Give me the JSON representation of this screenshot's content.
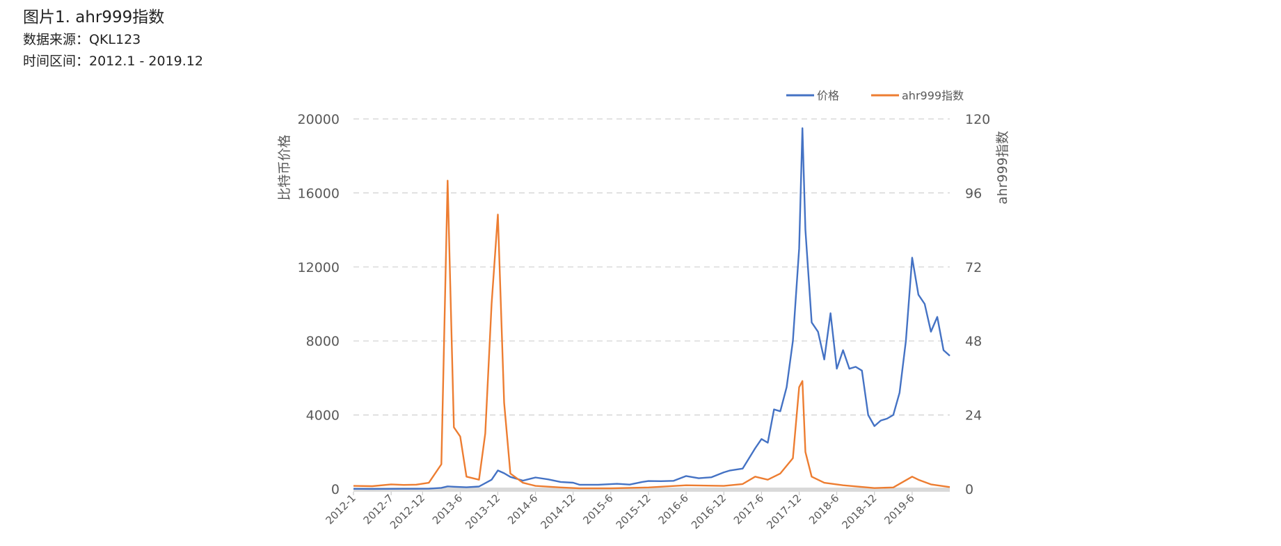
{
  "header": {
    "title": "图片1. ahr999指数",
    "source": "数据来源：QKL123",
    "range": "时间区间：2012.1 - 2019.12"
  },
  "chart_data": {
    "type": "line",
    "x_start": "2012-1",
    "x_end": "2019-12",
    "x_tick_labels": [
      "2012-1",
      "2012-7",
      "2012-12",
      "2013-6",
      "2013-12",
      "2014-6",
      "2014-12",
      "2015-6",
      "2015-12",
      "2016-6",
      "2016-12",
      "2017-6",
      "2017-12",
      "2018-6",
      "2018-12",
      "2019-6"
    ],
    "y_left": {
      "label": "比特币价格",
      "min": 0,
      "max": 20000,
      "ticks": [
        "0",
        "4000",
        "8000",
        "12000",
        "16000",
        "20000"
      ]
    },
    "y_right": {
      "label": "ahr999指数",
      "min": 0,
      "max": 120,
      "ticks": [
        "0",
        "24",
        "48",
        "72",
        "96",
        "120"
      ]
    },
    "grid": true,
    "legend_position": "top-right",
    "series": [
      {
        "name": "价格",
        "axis": "left",
        "color": "#4472C4",
        "points": [
          [
            "2012-01",
            6
          ],
          [
            "2012-04",
            5
          ],
          [
            "2012-07",
            8
          ],
          [
            "2012-09",
            11
          ],
          [
            "2012-11",
            12
          ],
          [
            "2013-01",
            14
          ],
          [
            "2013-03",
            60
          ],
          [
            "2013-04",
            140
          ],
          [
            "2013-05",
            120
          ],
          [
            "2013-07",
            90
          ],
          [
            "2013-09",
            130
          ],
          [
            "2013-11",
            500
          ],
          [
            "2013-12",
            1000
          ],
          [
            "2014-01",
            850
          ],
          [
            "2014-02",
            650
          ],
          [
            "2014-04",
            450
          ],
          [
            "2014-06",
            620
          ],
          [
            "2014-08",
            520
          ],
          [
            "2014-10",
            380
          ],
          [
            "2014-12",
            340
          ],
          [
            "2015-01",
            230
          ],
          [
            "2015-04",
            230
          ],
          [
            "2015-07",
            280
          ],
          [
            "2015-09",
            235
          ],
          [
            "2015-11",
            380
          ],
          [
            "2015-12",
            430
          ],
          [
            "2016-02",
            420
          ],
          [
            "2016-04",
            440
          ],
          [
            "2016-06",
            700
          ],
          [
            "2016-08",
            580
          ],
          [
            "2016-10",
            630
          ],
          [
            "2016-12",
            900
          ],
          [
            "2017-01",
            1000
          ],
          [
            "2017-03",
            1100
          ],
          [
            "2017-05",
            2200
          ],
          [
            "2017-06",
            2700
          ],
          [
            "2017-07",
            2500
          ],
          [
            "2017-08",
            4300
          ],
          [
            "2017-09",
            4200
          ],
          [
            "2017-10",
            5500
          ],
          [
            "2017-11",
            8000
          ],
          [
            "2017-12",
            13000
          ],
          [
            "2017-12-17",
            19500
          ],
          [
            "2018-01",
            14000
          ],
          [
            "2018-02",
            9000
          ],
          [
            "2018-03",
            8500
          ],
          [
            "2018-04",
            7000
          ],
          [
            "2018-05",
            9500
          ],
          [
            "2018-06",
            6500
          ],
          [
            "2018-07",
            7500
          ],
          [
            "2018-08",
            6500
          ],
          [
            "2018-09",
            6600
          ],
          [
            "2018-10",
            6400
          ],
          [
            "2018-11",
            4000
          ],
          [
            "2018-12",
            3400
          ],
          [
            "2019-01",
            3700
          ],
          [
            "2019-02",
            3800
          ],
          [
            "2019-03",
            4000
          ],
          [
            "2019-04",
            5200
          ],
          [
            "2019-05",
            8000
          ],
          [
            "2019-06",
            12500
          ],
          [
            "2019-07",
            10500
          ],
          [
            "2019-08",
            10000
          ],
          [
            "2019-09",
            8500
          ],
          [
            "2019-10",
            9300
          ],
          [
            "2019-11",
            7500
          ],
          [
            "2019-12",
            7200
          ]
        ]
      },
      {
        "name": "ahr999指数",
        "axis": "right",
        "color": "#ED7D31",
        "points": [
          [
            "2012-01",
            1.0
          ],
          [
            "2012-04",
            0.9
          ],
          [
            "2012-07",
            1.5
          ],
          [
            "2012-09",
            1.3
          ],
          [
            "2012-11",
            1.4
          ],
          [
            "2013-01",
            2.0
          ],
          [
            "2013-03",
            8
          ],
          [
            "2013-04",
            100
          ],
          [
            "2013-05",
            20
          ],
          [
            "2013-06",
            17
          ],
          [
            "2013-07",
            4
          ],
          [
            "2013-09",
            3
          ],
          [
            "2013-10",
            18
          ],
          [
            "2013-11",
            60
          ],
          [
            "2013-12",
            89
          ],
          [
            "2014-01",
            28
          ],
          [
            "2014-02",
            5
          ],
          [
            "2014-04",
            2.0
          ],
          [
            "2014-06",
            1.0
          ],
          [
            "2014-10",
            0.5
          ],
          [
            "2015-01",
            0.2
          ],
          [
            "2015-06",
            0.2
          ],
          [
            "2015-12",
            0.5
          ],
          [
            "2016-06",
            1.2
          ],
          [
            "2016-12",
            1.0
          ],
          [
            "2017-03",
            1.6
          ],
          [
            "2017-05",
            4
          ],
          [
            "2017-07",
            3
          ],
          [
            "2017-09",
            5
          ],
          [
            "2017-11",
            10
          ],
          [
            "2017-12",
            33
          ],
          [
            "2017-12-17",
            35
          ],
          [
            "2018-01",
            12
          ],
          [
            "2018-02",
            4
          ],
          [
            "2018-04",
            2.0
          ],
          [
            "2018-07",
            1.2
          ],
          [
            "2018-12",
            0.3
          ],
          [
            "2019-03",
            0.5
          ],
          [
            "2019-06",
            4
          ],
          [
            "2019-07",
            3
          ],
          [
            "2019-09",
            1.5
          ],
          [
            "2019-12",
            0.6
          ]
        ]
      }
    ]
  }
}
